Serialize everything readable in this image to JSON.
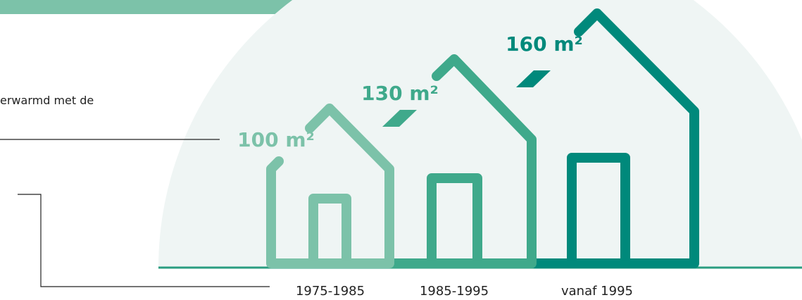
{
  "intro_text": "erwarmd met de",
  "houses": [
    {
      "size": "100 m²",
      "period": "1975-1985"
    },
    {
      "size": "130 m²",
      "period": "1985-1995"
    },
    {
      "size": "160 m²",
      "period": "vanaf 1995"
    }
  ]
}
